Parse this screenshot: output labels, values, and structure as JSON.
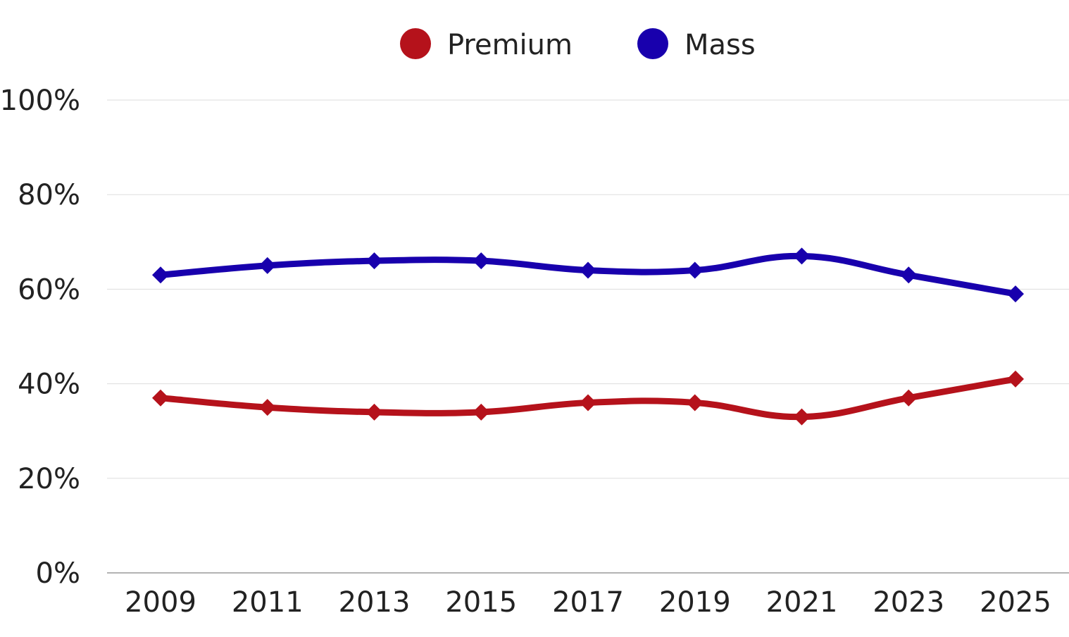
{
  "chart_data": {
    "type": "line",
    "categories": [
      "2009",
      "2011",
      "2013",
      "2015",
      "2017",
      "2019",
      "2021",
      "2023",
      "2025"
    ],
    "series": [
      {
        "name": "Premium",
        "color": "#B5121B",
        "values": [
          37,
          35,
          34,
          34,
          36,
          36,
          33,
          37,
          41
        ]
      },
      {
        "name": "Mass",
        "color": "#1800AD",
        "values": [
          63,
          65,
          66,
          66,
          64,
          64,
          67,
          63,
          59
        ]
      }
    ],
    "y_ticks": [
      "0%",
      "20%",
      "40%",
      "60%",
      "80%",
      "100%"
    ],
    "ylim": [
      0,
      100
    ],
    "grid": true,
    "legend_position": "top-center",
    "marker": "diamond"
  }
}
